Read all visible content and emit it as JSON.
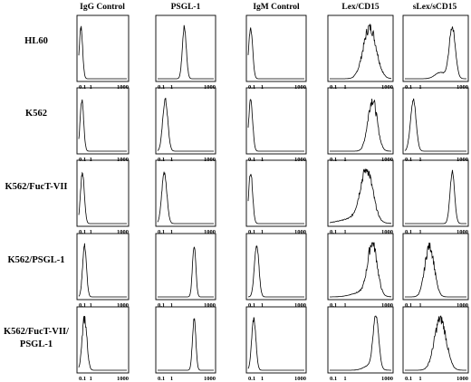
{
  "chart_data": {
    "type": "flow-cytometry-histogram-grid",
    "column_headers": [
      "IgG Control",
      "PSGL-1",
      "IgM Control",
      "Lex/CD15",
      "sLex/sCD15"
    ],
    "row_labels": [
      [
        "HL60"
      ],
      [
        "K562"
      ],
      [
        "K562/FucT-VII"
      ],
      [
        "K562/PSGL-1"
      ],
      [
        "K562/FucT-VII/",
        "PSGL-1"
      ]
    ],
    "x_axis": {
      "scale": "log",
      "range": [
        0.1,
        1000
      ],
      "tick_labels": [
        "0.1",
        "1",
        "1000"
      ],
      "tick_values": [
        0.1,
        1,
        1000
      ]
    },
    "histograms": [
      [
        {
          "peak": 0.15,
          "spread": 0.14,
          "shape": "narrow"
        },
        {
          "peak": 8,
          "spread": 0.14,
          "shape": "narrow"
        },
        {
          "peak": 0.15,
          "spread": 0.14,
          "shape": "narrow"
        },
        {
          "peak": 40,
          "spread": 0.42,
          "shape": "broad"
        },
        {
          "peak": 120,
          "spread": 0.2,
          "shape": "shoulder",
          "shoulder_at": 20
        }
      ],
      [
        {
          "peak": 0.18,
          "spread": 0.15,
          "shape": "narrow"
        },
        {
          "peak": 0.35,
          "spread": 0.18,
          "shape": "narrow"
        },
        {
          "peak": 0.15,
          "spread": 0.14,
          "shape": "narrow"
        },
        {
          "peak": 60,
          "spread": 0.3,
          "shape": "broad"
        },
        {
          "peak": 0.35,
          "spread": 0.18,
          "shape": "narrow"
        }
      ],
      [
        {
          "peak": 0.2,
          "spread": 0.16,
          "shape": "narrow"
        },
        {
          "peak": 0.3,
          "spread": 0.18,
          "shape": "narrow"
        },
        {
          "peak": 0.15,
          "spread": 0.14,
          "shape": "narrow"
        },
        {
          "peak": 25,
          "spread": 0.4,
          "shape": "broad-left-tail"
        },
        {
          "peak": 120,
          "spread": 0.15,
          "shape": "narrow"
        }
      ],
      [
        {
          "peak": 0.3,
          "spread": 0.16,
          "shape": "narrow"
        },
        {
          "peak": 40,
          "spread": 0.12,
          "shape": "narrow"
        },
        {
          "peak": 0.4,
          "spread": 0.16,
          "shape": "narrow"
        },
        {
          "peak": 60,
          "spread": 0.3,
          "shape": "broad-left-tail"
        },
        {
          "peak": 4,
          "spread": 0.3,
          "shape": "broad"
        }
      ],
      [
        {
          "peak": 0.3,
          "spread": 0.2,
          "shape": "broad"
        },
        {
          "peak": 40,
          "spread": 0.12,
          "shape": "narrow"
        },
        {
          "peak": 0.25,
          "spread": 0.15,
          "shape": "narrow"
        },
        {
          "peak": 100,
          "spread": 0.18,
          "shape": "narrow-left-tail"
        },
        {
          "peak": 20,
          "spread": 0.38,
          "shape": "broad"
        }
      ]
    ]
  }
}
